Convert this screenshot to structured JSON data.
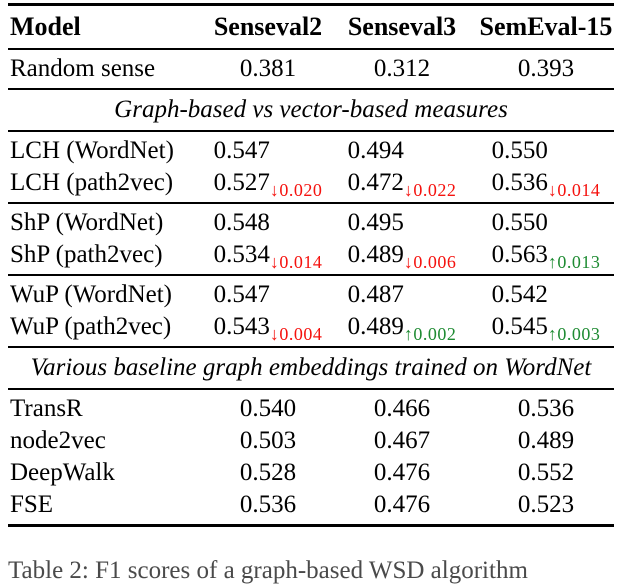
{
  "table": {
    "header": [
      "Model",
      "Senseval2",
      "Senseval3",
      "SemEval-15"
    ],
    "sections": [
      {
        "kind": "rows",
        "rows": [
          {
            "label": "Random sense",
            "values": [
              "0.381",
              "0.312",
              "0.393"
            ]
          }
        ]
      },
      {
        "kind": "banner",
        "text": "Graph-based vs vector-based measures"
      },
      {
        "kind": "rows",
        "rows": [
          {
            "label": "LCH (WordNet)",
            "values": [
              "0.547",
              "0.494",
              "0.550"
            ]
          },
          {
            "label": "LCH (path2vec)",
            "values": [
              {
                "v": "0.527",
                "delta": "0.020",
                "dir": "down"
              },
              {
                "v": "0.472",
                "delta": "0.022",
                "dir": "down"
              },
              {
                "v": "0.536",
                "delta": "0.014",
                "dir": "down"
              }
            ]
          }
        ]
      },
      {
        "kind": "rows",
        "rows": [
          {
            "label": "ShP (WordNet)",
            "values": [
              "0.548",
              "0.495",
              "0.550"
            ]
          },
          {
            "label": "ShP (path2vec)",
            "values": [
              {
                "v": "0.534",
                "delta": "0.014",
                "dir": "down"
              },
              {
                "v": "0.489",
                "delta": "0.006",
                "dir": "down"
              },
              {
                "v": "0.563",
                "delta": "0.013",
                "dir": "up"
              }
            ]
          }
        ]
      },
      {
        "kind": "rows",
        "rows": [
          {
            "label": "WuP (WordNet)",
            "values": [
              "0.547",
              "0.487",
              "0.542"
            ]
          },
          {
            "label": "WuP (path2vec)",
            "values": [
              {
                "v": "0.543",
                "delta": "0.004",
                "dir": "down"
              },
              {
                "v": "0.489",
                "delta": "0.002",
                "dir": "up"
              },
              {
                "v": "0.545",
                "delta": "0.003",
                "dir": "up"
              }
            ]
          }
        ]
      },
      {
        "kind": "banner",
        "text": "Various baseline graph embeddings trained on WordNet"
      },
      {
        "kind": "rows",
        "rows": [
          {
            "label": "TransR",
            "values": [
              "0.540",
              "0.466",
              "0.536"
            ]
          },
          {
            "label": "node2vec",
            "values": [
              "0.503",
              "0.467",
              "0.489"
            ]
          },
          {
            "label": "DeepWalk",
            "values": [
              "0.528",
              "0.476",
              "0.552"
            ]
          },
          {
            "label": "FSE",
            "values": [
              "0.536",
              "0.476",
              "0.523"
            ]
          }
        ]
      }
    ]
  },
  "icons": {
    "decrease_arrow": "↓",
    "increase_arrow": "↑"
  },
  "colors": {
    "decrease": "#f5120e",
    "increase": "#1e8b32",
    "rule": "#000000",
    "text": "#000000"
  },
  "caption": {
    "text": "Table 2: F1 scores of a graph-based WSD algorithm"
  }
}
